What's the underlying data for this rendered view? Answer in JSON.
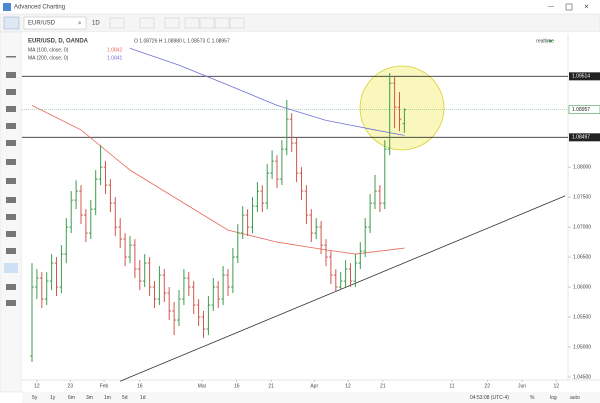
{
  "window": {
    "title": "Advanced Charting"
  },
  "toolbar": {
    "symbol": "EUR/USD",
    "interval": "1D"
  },
  "legend": {
    "symbol": "EUR/USD, D, OANDA",
    "ohlc": "O 1.08726 H 1.08980 L 1.08573 C 1.08957",
    "ma100": {
      "name": "MA (100, close, 0)",
      "value": "1.0842"
    },
    "ma200": {
      "name": "MA (200, close, 0)",
      "value": "1.0841"
    },
    "status": "realtime"
  },
  "footer": {
    "ranges": [
      "5y",
      "1y",
      "6m",
      "3m",
      "1m",
      "5d",
      "1d"
    ],
    "time": "04:53:08 (UTC-4)",
    "options": [
      "%",
      "log",
      "auto"
    ]
  },
  "chart_data": {
    "type": "ohlc",
    "up_color": "#3f9b4f",
    "down_color": "#d0574b",
    "ylim": [
      1.0445,
      1.1022
    ],
    "yticks": [
      {
        "value": 1.045,
        "label": "1.04500"
      },
      {
        "value": 1.05,
        "label": "1.05000"
      },
      {
        "value": 1.055,
        "label": "1.05500"
      },
      {
        "value": 1.06,
        "label": "1.06000"
      },
      {
        "value": 1.065,
        "label": "1.06500"
      },
      {
        "value": 1.07,
        "label": "1.07000"
      },
      {
        "value": 1.075,
        "label": "1.07500"
      },
      {
        "value": 1.08,
        "label": "1.08000"
      }
    ],
    "xticks": [
      {
        "value": 1,
        "label": "12"
      },
      {
        "value": 7.8,
        "label": "23"
      },
      {
        "value": 14.7,
        "label": "Feb"
      },
      {
        "value": 22,
        "label": "16"
      },
      {
        "value": 34.7,
        "label": "Mar"
      },
      {
        "value": 41.8,
        "label": "16"
      },
      {
        "value": 48.8,
        "label": "21"
      },
      {
        "value": 57.6,
        "label": "Apr"
      },
      {
        "value": 64.5,
        "label": "12"
      },
      {
        "value": 71.6,
        "label": "21"
      },
      {
        "value": 85.7,
        "label": "11"
      },
      {
        "value": 92.9,
        "label": "22"
      },
      {
        "value": 100,
        "label": "Jun"
      },
      {
        "value": 107,
        "label": "12"
      }
    ],
    "bars": [
      [
        1.0485,
        1.064,
        1.0475,
        1.06
      ],
      [
        1.06,
        1.063,
        1.058,
        1.0615
      ],
      [
        1.0615,
        1.0625,
        1.0565,
        1.058
      ],
      [
        1.058,
        1.0625,
        1.057,
        1.061
      ],
      [
        1.061,
        1.0655,
        1.0595,
        1.064
      ],
      [
        1.064,
        1.065,
        1.0585,
        1.06
      ],
      [
        1.06,
        1.067,
        1.059,
        1.0655
      ],
      [
        1.0655,
        1.0715,
        1.064,
        1.07
      ],
      [
        1.07,
        1.076,
        1.069,
        1.0745
      ],
      [
        1.0745,
        1.0778,
        1.073,
        1.076
      ],
      [
        1.076,
        1.077,
        1.0705,
        1.072
      ],
      [
        1.072,
        1.073,
        1.0675,
        1.069
      ],
      [
        1.069,
        1.0745,
        1.068,
        1.073
      ],
      [
        1.073,
        1.0795,
        1.072,
        1.078
      ],
      [
        1.078,
        1.0837,
        1.077,
        1.08
      ],
      [
        1.08,
        1.081,
        1.0755,
        1.077
      ],
      [
        1.077,
        1.078,
        1.0725,
        1.074
      ],
      [
        1.074,
        1.075,
        1.0685,
        1.07
      ],
      [
        1.07,
        1.0715,
        1.0665,
        1.068
      ],
      [
        1.068,
        1.069,
        1.0635,
        1.065
      ],
      [
        1.065,
        1.0685,
        1.064,
        1.067
      ],
      [
        1.067,
        1.068,
        1.0615,
        1.063
      ],
      [
        1.063,
        1.0645,
        1.0595,
        1.061
      ],
      [
        1.061,
        1.0655,
        1.06,
        1.064
      ],
      [
        1.064,
        1.065,
        1.0585,
        1.06
      ],
      [
        1.06,
        1.061,
        1.0565,
        1.058
      ],
      [
        1.058,
        1.0635,
        1.057,
        1.062
      ],
      [
        1.062,
        1.063,
        1.0575,
        1.059
      ],
      [
        1.059,
        1.06,
        1.0545,
        1.056
      ],
      [
        1.056,
        1.0575,
        1.052,
        1.0545
      ],
      [
        1.0545,
        1.0595,
        1.0535,
        1.058
      ],
      [
        1.058,
        1.063,
        1.057,
        1.0615
      ],
      [
        1.0615,
        1.0625,
        1.0585,
        1.06
      ],
      [
        1.06,
        1.061,
        1.0555,
        1.057
      ],
      [
        1.057,
        1.058,
        1.0535,
        1.055
      ],
      [
        1.055,
        1.056,
        1.0515,
        1.053
      ],
      [
        1.053,
        1.0585,
        1.052,
        1.057
      ],
      [
        1.057,
        1.0615,
        1.056,
        1.06
      ],
      [
        1.06,
        1.061,
        1.0565,
        1.058
      ],
      [
        1.058,
        1.0635,
        1.057,
        1.062
      ],
      [
        1.062,
        1.063,
        1.0585,
        1.06
      ],
      [
        1.06,
        1.0665,
        1.059,
        1.065
      ],
      [
        1.065,
        1.0705,
        1.064,
        1.069
      ],
      [
        1.069,
        1.0735,
        1.068,
        1.072
      ],
      [
        1.072,
        1.073,
        1.0685,
        1.07
      ],
      [
        1.07,
        1.075,
        1.069,
        1.0735
      ],
      [
        1.0735,
        1.0775,
        1.0725,
        1.076
      ],
      [
        1.076,
        1.077,
        1.0725,
        1.074
      ],
      [
        1.074,
        1.0805,
        1.073,
        1.079
      ],
      [
        1.079,
        1.0828,
        1.078,
        1.081
      ],
      [
        1.081,
        1.082,
        1.0765,
        1.078
      ],
      [
        1.078,
        1.0845,
        1.077,
        1.083
      ],
      [
        1.083,
        1.0912,
        1.082,
        1.088
      ],
      [
        1.088,
        1.089,
        1.0825,
        1.084
      ],
      [
        1.084,
        1.085,
        1.0775,
        1.079
      ],
      [
        1.079,
        1.08,
        1.0745,
        1.076
      ],
      [
        1.076,
        1.077,
        1.0705,
        1.072
      ],
      [
        1.072,
        1.073,
        1.0675,
        1.069
      ],
      [
        1.069,
        1.0715,
        1.068,
        1.07
      ],
      [
        1.07,
        1.071,
        1.0655,
        1.067
      ],
      [
        1.067,
        1.068,
        1.0635,
        1.065
      ],
      [
        1.065,
        1.066,
        1.0605,
        1.062
      ],
      [
        1.062,
        1.063,
        1.0592,
        1.06
      ],
      [
        1.06,
        1.0625,
        1.0595,
        1.061
      ],
      [
        1.061,
        1.0645,
        1.06,
        1.063
      ],
      [
        1.063,
        1.064,
        1.06,
        1.061
      ],
      [
        1.061,
        1.0655,
        1.06,
        1.064
      ],
      [
        1.064,
        1.0675,
        1.063,
        1.066
      ],
      [
        1.066,
        1.0715,
        1.065,
        1.07
      ],
      [
        1.07,
        1.0755,
        1.069,
        1.074
      ],
      [
        1.074,
        1.0787,
        1.073,
        1.076
      ],
      [
        1.076,
        1.077,
        1.0725,
        1.074
      ],
      [
        1.074,
        1.0845,
        1.073,
        1.083
      ],
      [
        1.083,
        1.0957,
        1.082,
        1.094
      ],
      [
        1.094,
        1.095,
        1.0865,
        1.09
      ],
      [
        1.09,
        1.0925,
        1.086,
        1.088
      ],
      [
        1.08726,
        1.0898,
        1.08573,
        1.08957
      ]
    ],
    "lines": [
      {
        "color": "#e8695e",
        "x": [
          0,
          10,
          20,
          30,
          40,
          50,
          60,
          66,
          76
        ],
        "values": [
          1.0903,
          1.0862,
          1.0795,
          1.0745,
          1.0695,
          1.0675,
          1.0662,
          1.0655,
          1.0665
        ]
      },
      {
        "color": "#6f6fd8",
        "x": [
          20,
          30,
          40,
          50,
          60,
          70,
          76
        ],
        "values": [
          1.0998,
          1.097,
          1.0937,
          1.0903,
          1.0878,
          1.0862,
          1.0853
        ]
      },
      {
        "color": "#333333",
        "x": [
          18,
          108.8
        ],
        "values": [
          1.0443,
          1.0752
        ]
      }
    ],
    "price_lines": [
      {
        "value": 1.09514,
        "label": "1.09514"
      },
      {
        "value": 1.08497,
        "label": "1.08497"
      }
    ],
    "last_price": {
      "value": 1.08957,
      "label": "1.08957"
    }
  }
}
